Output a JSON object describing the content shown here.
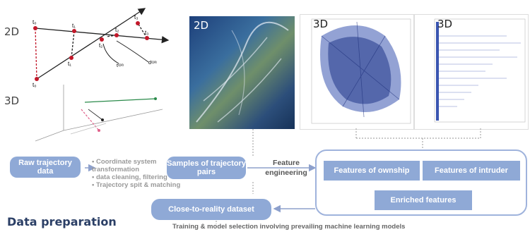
{
  "geometry_panel": {
    "label_2d": "2D",
    "label_3d": "3D",
    "point_labels": [
      "t₀",
      "t₁",
      "t₂",
      "t₃",
      "t₀",
      "t₁",
      "t₂",
      "t₃"
    ],
    "tcpa": "tᶜᵖᵃ",
    "dcpa": "dᶜᵖᵃ"
  },
  "panels": {
    "map_label": "2D",
    "plot1_label": "3D",
    "plot2_label": "3D"
  },
  "pipeline": {
    "raw_data": "Raw trajectory data",
    "bullets": [
      "• Coordinate system transformation",
      "• data cleaning, filtering",
      "• Trajectory spit & matching"
    ],
    "samples": "Samples of trajectory pairs",
    "feature_engineering": "Feature engineering",
    "features_ownship": "Features of ownship",
    "features_intruder": "Features of intruder",
    "enriched": "Enriched features",
    "dataset": "Close-to-reality dataset",
    "training": "Training & model selection involving prevailing machine learning models",
    "section_title": "Data preparation"
  },
  "colors": {
    "pill": "#8fa9d6",
    "trajectory": "#3a55b0",
    "arrow": "#8da0cc"
  }
}
